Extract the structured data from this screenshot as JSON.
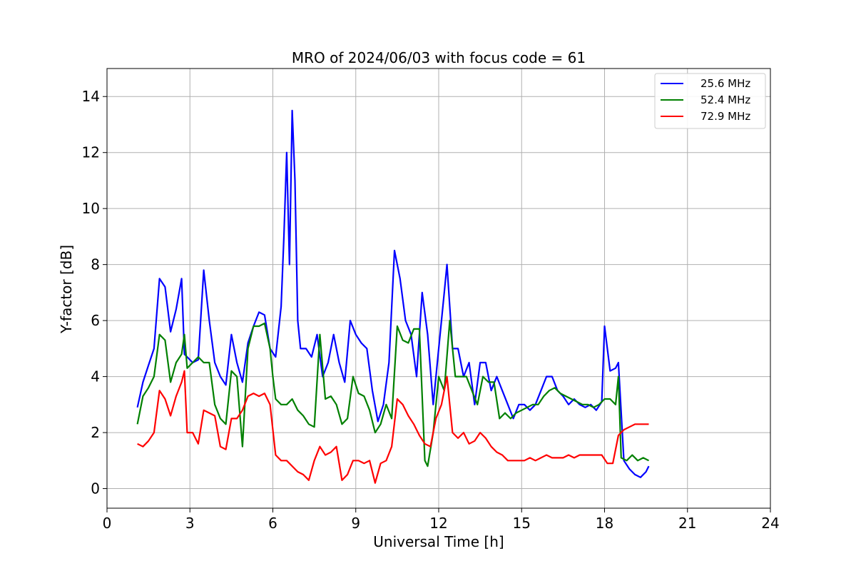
{
  "chart_data": {
    "type": "line",
    "title": "MRO of 2024/06/03 with focus code = 61",
    "xlabel": "Universal Time [h]",
    "ylabel": "Y-factor [dB]",
    "xlim": [
      0,
      24
    ],
    "ylim": [
      -0.7,
      15
    ],
    "xticks": [
      0,
      3,
      6,
      9,
      12,
      15,
      18,
      21,
      24
    ],
    "yticks": [
      0,
      2,
      4,
      6,
      8,
      10,
      12,
      14
    ],
    "grid": true,
    "legend_position": "top-right",
    "series": [
      {
        "name": "25.6 MHz",
        "color": "#0000ff",
        "x": [
          1.1,
          1.3,
          1.5,
          1.7,
          1.9,
          2.1,
          2.3,
          2.5,
          2.7,
          2.8,
          2.9,
          3.1,
          3.3,
          3.5,
          3.7,
          3.9,
          4.1,
          4.3,
          4.5,
          4.7,
          4.9,
          5.1,
          5.3,
          5.5,
          5.7,
          5.9,
          6.1,
          6.3,
          6.4,
          6.5,
          6.6,
          6.7,
          6.8,
          6.9,
          7.0,
          7.2,
          7.4,
          7.6,
          7.8,
          8.0,
          8.2,
          8.4,
          8.6,
          8.8,
          9.0,
          9.2,
          9.4,
          9.6,
          9.8,
          10.0,
          10.2,
          10.4,
          10.6,
          10.8,
          11.0,
          11.2,
          11.4,
          11.6,
          11.8,
          12.0,
          12.2,
          12.3,
          12.5,
          12.7,
          12.9,
          13.1,
          13.3,
          13.5,
          13.7,
          13.9,
          14.1,
          14.3,
          14.5,
          14.7,
          14.9,
          15.1,
          15.3,
          15.5,
          15.7,
          15.9,
          16.1,
          16.3,
          16.5,
          16.7,
          16.9,
          17.1,
          17.3,
          17.5,
          17.7,
          17.9,
          18.0,
          18.2,
          18.4,
          18.5,
          18.7,
          18.9,
          19.1,
          19.3,
          19.5,
          19.6
        ],
        "values": [
          2.9,
          3.8,
          4.4,
          5.0,
          7.5,
          7.2,
          5.6,
          6.4,
          7.5,
          4.8,
          4.7,
          4.5,
          4.6,
          7.8,
          6.0,
          4.5,
          4.0,
          3.7,
          5.5,
          4.5,
          3.8,
          5.2,
          5.8,
          6.3,
          6.2,
          5.0,
          4.7,
          6.5,
          9.0,
          12.0,
          8.0,
          13.5,
          11.0,
          6.0,
          5.0,
          5.0,
          4.7,
          5.5,
          4.0,
          4.5,
          5.5,
          4.5,
          3.8,
          6.0,
          5.5,
          5.2,
          5.0,
          3.5,
          2.4,
          3.0,
          4.5,
          8.5,
          7.5,
          6.0,
          5.5,
          4.0,
          7.0,
          5.5,
          3.0,
          5.0,
          7.0,
          8.0,
          5.0,
          5.0,
          4.0,
          4.5,
          3.0,
          4.5,
          4.5,
          3.5,
          4.0,
          3.5,
          3.0,
          2.5,
          3.0,
          3.0,
          2.8,
          3.0,
          3.5,
          4.0,
          4.0,
          3.5,
          3.3,
          3.0,
          3.2,
          3.0,
          2.9,
          3.0,
          2.8,
          3.1,
          5.8,
          4.2,
          4.3,
          4.5,
          1.0,
          0.7,
          0.5,
          0.4,
          0.6,
          0.8
        ]
      },
      {
        "name": "52.4 MHz",
        "color": "#008000",
        "x": [
          1.1,
          1.3,
          1.5,
          1.7,
          1.9,
          2.1,
          2.3,
          2.5,
          2.7,
          2.8,
          2.9,
          3.1,
          3.3,
          3.5,
          3.7,
          3.9,
          4.1,
          4.3,
          4.5,
          4.7,
          4.9,
          5.1,
          5.3,
          5.5,
          5.7,
          5.9,
          6.0,
          6.1,
          6.3,
          6.5,
          6.7,
          6.9,
          7.1,
          7.3,
          7.5,
          7.7,
          7.9,
          8.1,
          8.3,
          8.5,
          8.7,
          8.9,
          9.1,
          9.3,
          9.5,
          9.7,
          9.9,
          10.1,
          10.3,
          10.5,
          10.7,
          10.9,
          11.1,
          11.3,
          11.5,
          11.6,
          11.8,
          12.0,
          12.2,
          12.4,
          12.6,
          12.8,
          13.0,
          13.2,
          13.4,
          13.6,
          13.8,
          14.0,
          14.2,
          14.4,
          14.6,
          14.8,
          15.0,
          15.2,
          15.4,
          15.6,
          15.8,
          16.0,
          16.2,
          16.4,
          16.6,
          16.8,
          17.0,
          17.2,
          17.4,
          17.6,
          17.8,
          18.0,
          18.2,
          18.4,
          18.5,
          18.6,
          18.8,
          19.0,
          19.2,
          19.4,
          19.6
        ],
        "values": [
          2.3,
          3.3,
          3.6,
          4.0,
          5.5,
          5.3,
          3.8,
          4.5,
          4.8,
          5.5,
          4.3,
          4.5,
          4.7,
          4.5,
          4.5,
          3.0,
          2.5,
          2.3,
          4.2,
          4.0,
          1.5,
          5.0,
          5.8,
          5.8,
          5.9,
          5.0,
          4.0,
          3.2,
          3.0,
          3.0,
          3.2,
          2.8,
          2.6,
          2.3,
          2.2,
          5.5,
          3.2,
          3.3,
          3.0,
          2.3,
          2.5,
          4.0,
          3.4,
          3.3,
          2.8,
          2.0,
          2.3,
          3.0,
          2.5,
          5.8,
          5.3,
          5.2,
          5.7,
          5.7,
          1.0,
          0.8,
          2.0,
          4.0,
          3.5,
          6.0,
          4.0,
          4.0,
          4.0,
          3.5,
          3.0,
          4.0,
          3.8,
          3.8,
          2.5,
          2.7,
          2.5,
          2.7,
          2.8,
          2.9,
          3.0,
          3.0,
          3.3,
          3.5,
          3.6,
          3.4,
          3.3,
          3.2,
          3.1,
          3.0,
          3.0,
          2.9,
          3.0,
          3.2,
          3.2,
          3.0,
          4.0,
          1.1,
          1.0,
          1.2,
          1.0,
          1.1,
          1.0
        ]
      },
      {
        "name": "72.9 MHz",
        "color": "#ff0000",
        "x": [
          1.1,
          1.3,
          1.5,
          1.7,
          1.9,
          2.1,
          2.3,
          2.5,
          2.7,
          2.8,
          2.9,
          3.1,
          3.3,
          3.5,
          3.7,
          3.9,
          4.1,
          4.3,
          4.5,
          4.7,
          4.9,
          5.1,
          5.3,
          5.5,
          5.7,
          5.9,
          6.1,
          6.3,
          6.5,
          6.7,
          6.9,
          7.1,
          7.3,
          7.5,
          7.7,
          7.9,
          8.1,
          8.3,
          8.5,
          8.7,
          8.9,
          9.1,
          9.3,
          9.5,
          9.7,
          9.9,
          10.1,
          10.3,
          10.5,
          10.7,
          10.9,
          11.1,
          11.3,
          11.5,
          11.7,
          11.9,
          12.1,
          12.3,
          12.5,
          12.7,
          12.9,
          13.1,
          13.3,
          13.5,
          13.7,
          13.9,
          14.1,
          14.3,
          14.5,
          14.7,
          14.9,
          15.1,
          15.3,
          15.5,
          15.7,
          15.9,
          16.1,
          16.3,
          16.5,
          16.7,
          16.9,
          17.1,
          17.3,
          17.5,
          17.7,
          17.9,
          18.1,
          18.3,
          18.5,
          18.7,
          18.9,
          19.1,
          19.3,
          19.5,
          19.6
        ],
        "values": [
          1.6,
          1.5,
          1.7,
          2.0,
          3.5,
          3.2,
          2.6,
          3.3,
          3.8,
          4.2,
          2.0,
          2.0,
          1.6,
          2.8,
          2.7,
          2.6,
          1.5,
          1.4,
          2.5,
          2.5,
          2.8,
          3.3,
          3.4,
          3.3,
          3.4,
          3.0,
          1.2,
          1.0,
          1.0,
          0.8,
          0.6,
          0.5,
          0.3,
          1.0,
          1.5,
          1.2,
          1.3,
          1.5,
          0.3,
          0.5,
          1.0,
          1.0,
          0.9,
          1.0,
          0.2,
          0.9,
          1.0,
          1.5,
          3.2,
          3.0,
          2.6,
          2.3,
          1.9,
          1.6,
          1.5,
          2.5,
          3.0,
          4.0,
          2.0,
          1.8,
          2.0,
          1.6,
          1.7,
          2.0,
          1.8,
          1.5,
          1.3,
          1.2,
          1.0,
          1.0,
          1.0,
          1.0,
          1.1,
          1.0,
          1.1,
          1.2,
          1.1,
          1.1,
          1.1,
          1.2,
          1.1,
          1.2,
          1.2,
          1.2,
          1.2,
          1.2,
          0.9,
          0.9,
          1.9,
          2.1,
          2.2,
          2.3,
          2.3,
          2.3,
          2.3
        ]
      }
    ]
  }
}
